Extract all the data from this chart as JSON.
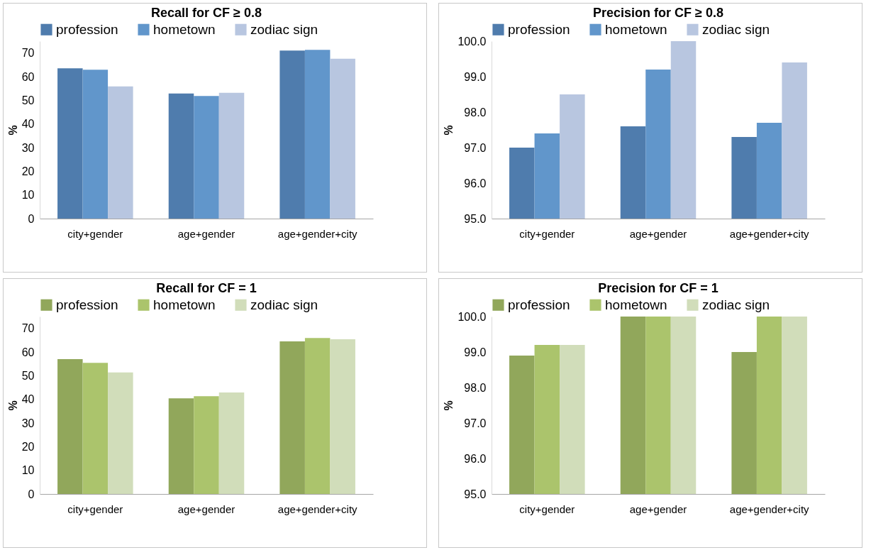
{
  "chart_data": [
    {
      "type": "bar",
      "title": "Recall for CF ≥ 0.8",
      "ylabel": "%",
      "categories": [
        "city+gender",
        "age+gender",
        "age+gender+city"
      ],
      "series": [
        {
          "name": "profession",
          "color": "#4f7cad",
          "values": [
            63.5,
            52.9,
            71.0
          ]
        },
        {
          "name": "hometown",
          "color": "#6196cb",
          "values": [
            62.9,
            51.8,
            71.3
          ]
        },
        {
          "name": "zodiac sign",
          "color": "#b8c6e0",
          "values": [
            55.9,
            53.2,
            67.6
          ]
        }
      ],
      "ylim": [
        0,
        75
      ],
      "yticks": [
        0,
        10,
        20,
        30,
        40,
        50,
        60,
        70
      ],
      "grid": false,
      "legend": "top"
    },
    {
      "type": "bar",
      "title": "Precision for CF ≥ 0.8",
      "ylabel": "%",
      "categories": [
        "city+gender",
        "age+gender",
        "age+gender+city"
      ],
      "series": [
        {
          "name": "profession",
          "color": "#4f7cad",
          "values": [
            97.0,
            97.6,
            97.3
          ]
        },
        {
          "name": "hometown",
          "color": "#6196cb",
          "values": [
            97.4,
            99.2,
            97.7
          ]
        },
        {
          "name": "zodiac sign",
          "color": "#b8c6e0",
          "values": [
            98.5,
            100.0,
            99.4
          ]
        }
      ],
      "ylim": [
        95,
        100
      ],
      "yticks": [
        {
          "value": 95,
          "label": "95.0"
        },
        {
          "value": 96,
          "label": "96.0"
        },
        {
          "value": 97,
          "label": "97.0"
        },
        {
          "value": 98,
          "label": "98.0"
        },
        {
          "value": 99,
          "label": "99.0"
        },
        {
          "value": 100,
          "label": "100.0"
        }
      ],
      "grid": false,
      "legend": "top"
    },
    {
      "type": "bar",
      "title": "Recall for CF = 1",
      "ylabel": "%",
      "categories": [
        "city+gender",
        "age+gender",
        "age+gender+city"
      ],
      "series": [
        {
          "name": "profession",
          "color": "#91a75b",
          "values": [
            57.0,
            40.4,
            64.5
          ]
        },
        {
          "name": "hometown",
          "color": "#abc46c",
          "values": [
            55.4,
            41.3,
            65.9
          ]
        },
        {
          "name": "zodiac sign",
          "color": "#d1ddba",
          "values": [
            51.4,
            42.9,
            65.4
          ]
        }
      ],
      "ylim": [
        0,
        75
      ],
      "yticks": [
        0,
        10,
        20,
        30,
        40,
        50,
        60,
        70
      ],
      "grid": false,
      "legend": "top"
    },
    {
      "type": "bar",
      "title": "Precision for CF = 1",
      "ylabel": "%",
      "categories": [
        "city+gender",
        "age+gender",
        "age+gender+city"
      ],
      "series": [
        {
          "name": "profession",
          "color": "#91a75b",
          "values": [
            98.9,
            100.0,
            99.0
          ]
        },
        {
          "name": "hometown",
          "color": "#abc46c",
          "values": [
            99.2,
            100.0,
            100.0
          ]
        },
        {
          "name": "zodiac sign",
          "color": "#d1ddba",
          "values": [
            99.2,
            100.0,
            100.0
          ]
        }
      ],
      "ylim": [
        95,
        100
      ],
      "yticks": [
        {
          "value": 95,
          "label": "95.0"
        },
        {
          "value": 96,
          "label": "96.0"
        },
        {
          "value": 97,
          "label": "97.0"
        },
        {
          "value": 98,
          "label": "98.0"
        },
        {
          "value": 99,
          "label": "99.0"
        },
        {
          "value": 100,
          "label": "100.0"
        }
      ],
      "grid": false,
      "legend": "top"
    }
  ]
}
